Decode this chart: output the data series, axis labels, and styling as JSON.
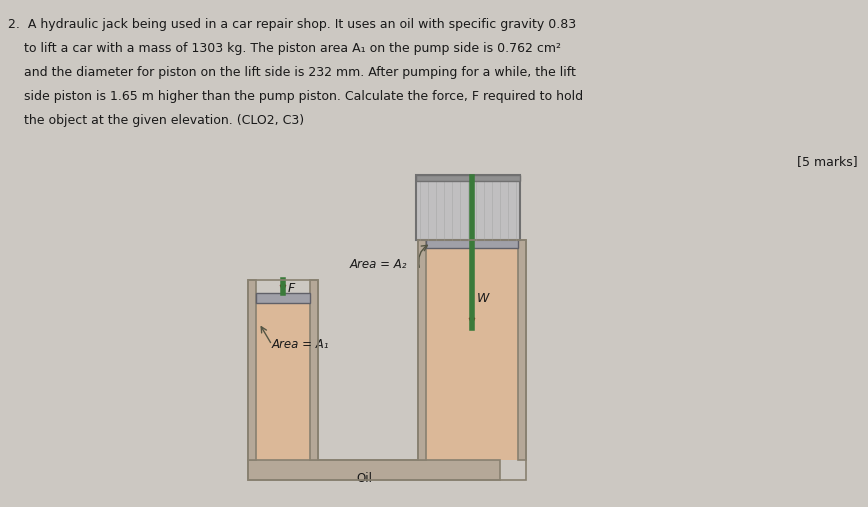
{
  "bg_color": "#ccc8c2",
  "text_color": "#1a1a1a",
  "title_line1": "2.  A hydraulic jack being used in a car repair shop. It uses an oil with specific gravity 0.83",
  "title_line2": "    to lift a car with a mass of 1303 kg. The piston area A₁ on the pump side is 0.762 cm²",
  "title_line3": "    and the diameter for piston on the lift side is 232 mm. After pumping for a while, the lift",
  "title_line4": "    side piston is 1.65 m higher than the pump piston. Calculate the force, F required to hold",
  "title_line5": "    the object at the given elevation. (CLO2, C3)",
  "marks_text": "[5 marks]",
  "oil_color": "#dbb898",
  "wall_color": "#b5a898",
  "wall_edge": "#888070",
  "piston_color": "#a0a0a8",
  "piston_edge": "#606068",
  "rod_color": "#3a7a3a",
  "rod_dark": "#8b0000",
  "load_color": "#c0bfc0",
  "load_edge": "#707070",
  "label_area2": "Area = A₂",
  "label_area1": "Area = A₁",
  "label_F": "F",
  "label_W": "W",
  "label_Oil": "Oil",
  "arrow_color": "#555544"
}
